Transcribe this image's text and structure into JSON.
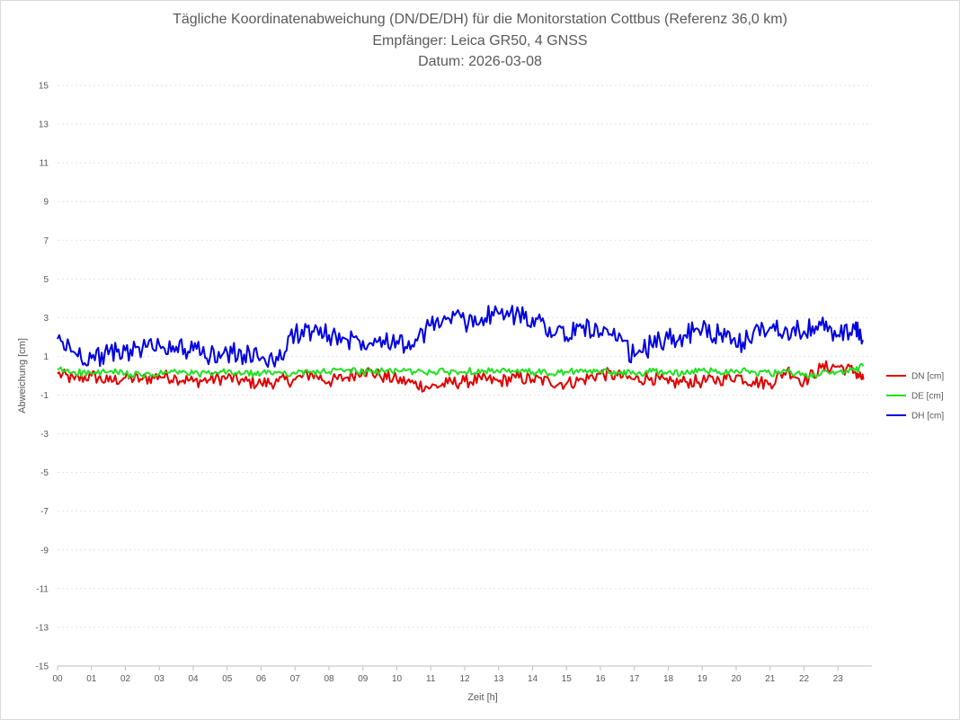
{
  "chart_data": {
    "type": "line",
    "title_line1": "Tägliche Koordinatenabweichung (DN/DE/DH) für die Monitorstation Cottbus (Referenz 36,0 km)",
    "title_line2": "Empfänger: Leica GR50, 4 GNSS",
    "title_line3": "Datum: 2026-03-08",
    "xlabel": "Zeit [h]",
    "ylabel": "Abweichung [cm]",
    "xlim": [
      0,
      24
    ],
    "ylim": [
      -15,
      15
    ],
    "x_ticks": [
      "00",
      "01",
      "02",
      "03",
      "04",
      "05",
      "06",
      "07",
      "08",
      "09",
      "10",
      "11",
      "12",
      "13",
      "14",
      "15",
      "16",
      "17",
      "18",
      "19",
      "20",
      "21",
      "22",
      "23"
    ],
    "y_ticks": [
      15,
      13,
      11,
      9,
      7,
      5,
      3,
      1,
      -1,
      -3,
      -5,
      -7,
      -9,
      -11,
      -13,
      -15
    ],
    "grid": true,
    "legend_position": "right",
    "x": [
      0,
      0.5,
      1,
      1.5,
      2,
      2.5,
      3,
      3.5,
      4,
      4.5,
      5,
      5.5,
      6,
      6.5,
      7,
      7.5,
      8,
      8.5,
      9,
      9.5,
      10,
      10.5,
      11,
      11.5,
      12,
      12.5,
      13,
      13.5,
      14,
      14.5,
      15,
      15.5,
      16,
      16.5,
      17,
      17.5,
      18,
      18.5,
      19,
      19.5,
      20,
      20.5,
      21,
      21.5,
      22,
      22.5,
      23,
      23.5,
      23.75
    ],
    "series": [
      {
        "name": "DN [cm]",
        "color": "#e00000",
        "values": [
          0.1,
          -0.2,
          0,
          -0.3,
          -0.1,
          -0.2,
          0,
          -0.1,
          -0.3,
          -0.2,
          -0.1,
          -0.3,
          -0.4,
          -0.3,
          -0.2,
          0.1,
          -0.3,
          -0.1,
          0.3,
          0,
          -0.2,
          -0.4,
          -0.6,
          -0.4,
          -0.3,
          -0.2,
          -0.3,
          -0.1,
          -0.2,
          -0.3,
          -0.4,
          -0.2,
          0.1,
          0,
          -0.2,
          -0.1,
          -0.4,
          -0.3,
          -0.3,
          -0.2,
          0,
          -0.3,
          -0.4,
          0.3,
          -0.3,
          0.4,
          0.5,
          0.2,
          -0.2
        ]
      },
      {
        "name": "DE [cm]",
        "color": "#22e022",
        "values": [
          0.3,
          0.2,
          0.1,
          0.2,
          0.1,
          0,
          0.1,
          0.2,
          0.1,
          0.1,
          0.2,
          0.1,
          0.1,
          0.2,
          0.1,
          0.2,
          0.2,
          0.3,
          0.2,
          0.2,
          0.3,
          0.2,
          0.2,
          0.2,
          0.2,
          0.3,
          0.2,
          0.2,
          0.2,
          0.1,
          0.2,
          0.2,
          0.2,
          0.2,
          0.1,
          0.2,
          0.2,
          0.1,
          0.3,
          0.2,
          0.3,
          0.2,
          0.1,
          0.2,
          0,
          0.1,
          0.2,
          0.3,
          0.5
        ]
      },
      {
        "name": "DH [cm]",
        "color": "#0000e0",
        "values": [
          1.9,
          1.2,
          0.9,
          1.1,
          1.3,
          1.4,
          1.6,
          1.5,
          1.3,
          1,
          1.2,
          1.1,
          0.9,
          0.8,
          2.2,
          2.3,
          2.1,
          1.9,
          1.8,
          2,
          1.8,
          1.5,
          2.6,
          3,
          2.8,
          3,
          3.2,
          3.1,
          3,
          2.5,
          2,
          2.6,
          2.2,
          1.8,
          1,
          1.6,
          1.9,
          2.1,
          2.4,
          2.1,
          1.5,
          2.2,
          2.5,
          2.4,
          2.3,
          2.6,
          2.1,
          2.4,
          1.8
        ]
      }
    ]
  }
}
